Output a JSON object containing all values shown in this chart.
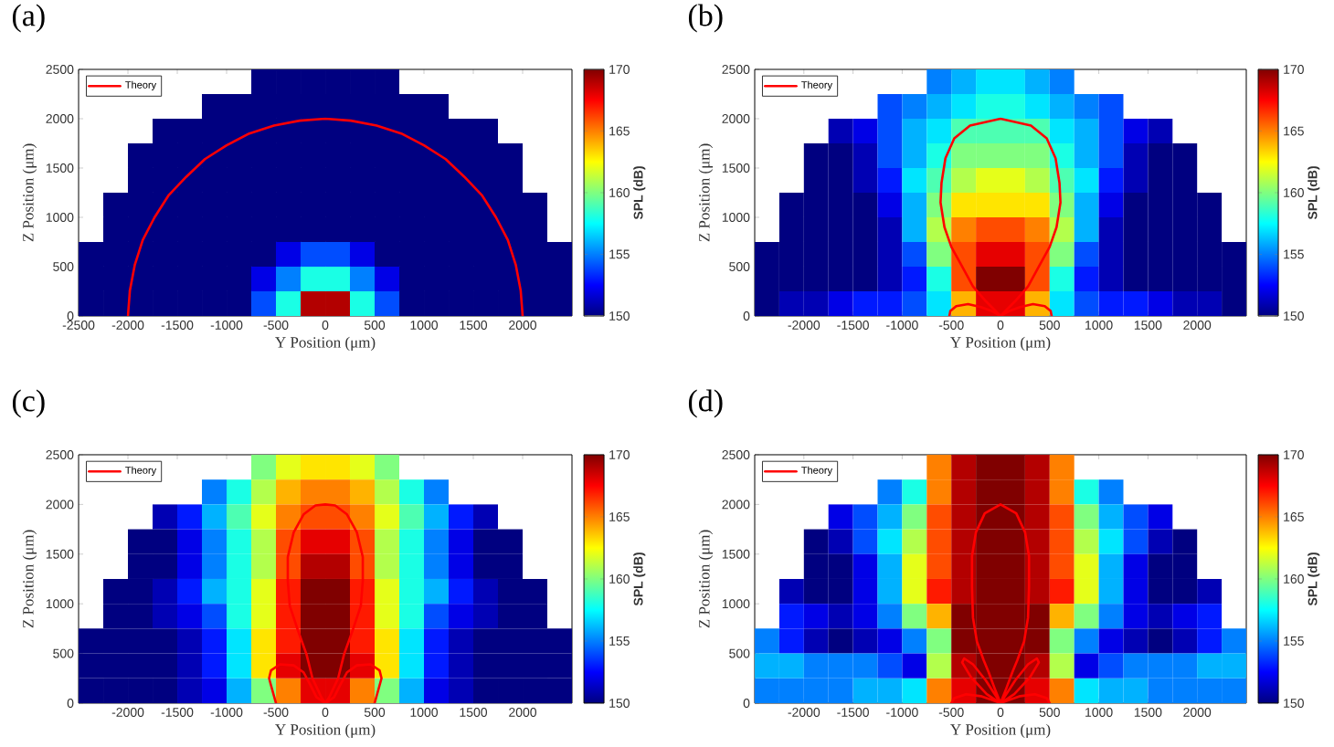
{
  "chart_data": [
    {
      "type": "heatmap",
      "title": "(a)",
      "xlabel": "Y Position (μm)",
      "ylabel": "Z Position (μm)",
      "clabel": "SPL (dB)",
      "x": [
        -2375,
        -2125,
        -1875,
        -1625,
        -1375,
        -1125,
        -875,
        -625,
        -375,
        -125,
        125,
        375,
        625,
        875,
        1125,
        1375,
        1625,
        1875,
        2125,
        2375
      ],
      "y": [
        2375,
        2125,
        1875,
        1625,
        1375,
        1125,
        875,
        625,
        375,
        125
      ],
      "cells": [
        [
          null,
          null,
          null,
          null,
          null,
          null,
          null,
          150,
          150,
          150,
          150,
          150,
          150,
          null,
          null,
          null,
          null,
          null,
          null,
          null
        ],
        [
          null,
          null,
          null,
          null,
          null,
          150,
          150,
          150,
          150,
          150,
          150,
          150,
          150,
          150,
          150,
          null,
          null,
          null,
          null,
          null
        ],
        [
          null,
          null,
          null,
          150,
          150,
          150,
          150,
          150,
          150,
          150,
          150,
          150,
          150,
          150,
          150,
          150,
          150,
          null,
          null,
          null
        ],
        [
          null,
          null,
          150,
          150,
          150,
          150,
          150,
          150,
          150,
          150,
          150,
          150,
          150,
          150,
          150,
          150,
          150,
          150,
          null,
          null
        ],
        [
          null,
          null,
          150,
          150,
          150,
          150,
          150,
          150,
          150,
          150,
          150,
          150,
          150,
          150,
          150,
          150,
          150,
          150,
          null,
          null
        ],
        [
          null,
          150,
          150,
          150,
          150,
          150,
          150,
          150,
          150,
          150,
          150,
          150,
          150,
          150,
          150,
          150,
          150,
          150,
          150,
          null
        ],
        [
          null,
          150,
          150,
          150,
          150,
          150,
          150,
          150,
          150,
          150,
          150,
          150,
          150,
          150,
          150,
          150,
          150,
          150,
          150,
          null
        ],
        [
          150,
          150,
          150,
          150,
          150,
          150,
          150,
          150,
          152,
          154,
          154,
          152,
          150,
          150,
          150,
          150,
          150,
          150,
          150,
          150
        ],
        [
          150,
          150,
          150,
          150,
          150,
          150,
          150,
          152,
          155,
          158,
          158,
          155,
          152,
          150,
          150,
          150,
          150,
          150,
          150,
          150
        ],
        [
          150,
          150,
          150,
          150,
          150,
          150,
          150,
          154,
          158,
          169,
          169,
          158,
          154,
          150,
          150,
          150,
          150,
          150,
          150,
          150
        ]
      ],
      "clim": [
        150,
        170
      ],
      "cticks": [
        150,
        155,
        160,
        165,
        170
      ],
      "xlim": [
        -2500,
        2500
      ],
      "ylim": [
        0,
        2500
      ],
      "xticks": [
        -2500,
        -2000,
        -1500,
        -1000,
        -500,
        0,
        500,
        1000,
        1500,
        2000
      ],
      "yticks": [
        0,
        500,
        1000,
        1500,
        2000,
        2500
      ],
      "legend": "top left",
      "series": [
        {
          "name": "Theory",
          "type": "line",
          "color": "#ff0000",
          "x": [
            -2000,
            -1980,
            -1930,
            -1850,
            -1730,
            -1590,
            -1410,
            -1220,
            -1000,
            -770,
            -520,
            -260,
            0,
            260,
            520,
            770,
            1000,
            1220,
            1410,
            1590,
            1730,
            1850,
            1930,
            1980,
            2000
          ],
          "values": [
            0,
            260,
            520,
            770,
            1000,
            1220,
            1410,
            1590,
            1730,
            1850,
            1930,
            1980,
            2000,
            1980,
            1930,
            1850,
            1730,
            1590,
            1410,
            1220,
            1000,
            770,
            520,
            260,
            0
          ]
        }
      ]
    },
    {
      "type": "heatmap",
      "title": "(b)",
      "xlabel": "Y Position (μm)",
      "ylabel": "Z Position (μm)",
      "clabel": "SPL (dB)",
      "x": [
        -2375,
        -2125,
        -1875,
        -1625,
        -1375,
        -1125,
        -875,
        -625,
        -375,
        -125,
        125,
        375,
        625,
        875,
        1125,
        1375,
        1625,
        1875,
        2125,
        2375
      ],
      "y": [
        2375,
        2125,
        1875,
        1625,
        1375,
        1125,
        875,
        625,
        375,
        125
      ],
      "cells": [
        [
          null,
          null,
          null,
          null,
          null,
          null,
          null,
          155,
          156,
          157,
          157,
          156,
          155,
          null,
          null,
          null,
          null,
          null,
          null,
          null
        ],
        [
          null,
          null,
          null,
          null,
          null,
          154,
          155,
          156,
          157,
          158,
          158,
          157,
          156,
          155,
          154,
          null,
          null,
          null,
          null,
          null
        ],
        [
          null,
          null,
          null,
          151,
          152,
          154,
          156,
          157,
          159,
          159,
          159,
          159,
          157,
          156,
          154,
          152,
          151,
          null,
          null,
          null
        ],
        [
          null,
          null,
          150,
          150,
          151,
          154,
          156,
          158,
          160,
          160,
          160,
          160,
          158,
          156,
          154,
          151,
          150,
          150,
          null,
          null
        ],
        [
          null,
          null,
          150,
          150,
          151,
          153,
          157,
          159,
          161,
          162,
          162,
          161,
          159,
          157,
          153,
          151,
          150,
          150,
          null,
          null
        ],
        [
          null,
          150,
          150,
          150,
          150,
          152,
          156,
          160,
          163,
          163,
          163,
          163,
          160,
          156,
          152,
          150,
          150,
          150,
          150,
          null
        ],
        [
          null,
          150,
          150,
          150,
          150,
          151,
          156,
          161,
          165,
          166,
          166,
          165,
          161,
          156,
          151,
          150,
          150,
          150,
          150,
          null
        ],
        [
          150,
          150,
          150,
          150,
          150,
          151,
          154,
          160,
          166,
          168,
          168,
          166,
          160,
          154,
          151,
          150,
          150,
          150,
          150,
          150
        ],
        [
          150,
          150,
          150,
          150,
          150,
          151,
          153,
          158,
          166,
          170,
          170,
          166,
          158,
          153,
          151,
          150,
          150,
          150,
          150,
          150
        ],
        [
          150,
          151,
          151,
          152,
          153,
          153,
          154,
          157,
          164,
          168,
          168,
          164,
          157,
          154,
          153,
          153,
          152,
          151,
          151,
          150
        ]
      ],
      "clim": [
        150,
        170
      ],
      "cticks": [
        150,
        155,
        160,
        165,
        170
      ],
      "xlim": [
        -2500,
        2500
      ],
      "ylim": [
        0,
        2500
      ],
      "xticks": [
        -2000,
        -1500,
        -1000,
        -500,
        0,
        500,
        1000,
        1500,
        2000
      ],
      "yticks": [
        0,
        500,
        1000,
        1500,
        2000,
        2500
      ],
      "legend": "top left",
      "series": [
        {
          "name": "Theory",
          "type": "line",
          "color": "#ff0000",
          "x": [
            -520,
            -510,
            -450,
            -330,
            -200,
            -90,
            0,
            -150,
            -280,
            -390,
            -500,
            -570,
            -610,
            -600,
            -560,
            -470,
            -310,
            0,
            310,
            470,
            560,
            600,
            610,
            570,
            500,
            390,
            280,
            150,
            0,
            90,
            200,
            330,
            450,
            510,
            520
          ],
          "values": [
            0,
            50,
            100,
            120,
            90,
            50,
            0,
            150,
            300,
            500,
            700,
            900,
            1150,
            1350,
            1600,
            1800,
            1930,
            2000,
            1930,
            1800,
            1600,
            1350,
            1150,
            900,
            700,
            500,
            300,
            150,
            0,
            50,
            90,
            120,
            100,
            50,
            0
          ]
        }
      ]
    },
    {
      "type": "heatmap",
      "title": "(c)",
      "xlabel": "Y Position (μm)",
      "ylabel": "Z Position (μm)",
      "clabel": "SPL (dB)",
      "x": [
        -2375,
        -2125,
        -1875,
        -1625,
        -1375,
        -1125,
        -875,
        -625,
        -375,
        -125,
        125,
        375,
        625,
        875,
        1125,
        1375,
        1625,
        1875,
        2125,
        2375
      ],
      "y": [
        2375,
        2125,
        1875,
        1625,
        1375,
        1125,
        875,
        625,
        375,
        125
      ],
      "cells": [
        [
          null,
          null,
          null,
          null,
          null,
          null,
          null,
          160,
          162,
          163,
          163,
          162,
          160,
          null,
          null,
          null,
          null,
          null,
          null,
          null
        ],
        [
          null,
          null,
          null,
          null,
          null,
          155,
          158,
          161,
          164,
          165,
          165,
          164,
          161,
          158,
          155,
          null,
          null,
          null,
          null,
          null
        ],
        [
          null,
          null,
          null,
          151,
          153,
          156,
          159,
          162,
          165,
          166,
          166,
          165,
          162,
          159,
          156,
          153,
          151,
          null,
          null,
          null
        ],
        [
          null,
          null,
          150,
          150,
          152,
          155,
          158,
          161,
          166,
          168,
          168,
          166,
          161,
          158,
          155,
          152,
          150,
          150,
          null,
          null
        ],
        [
          null,
          null,
          150,
          150,
          152,
          155,
          158,
          161,
          166,
          169,
          169,
          166,
          161,
          158,
          155,
          152,
          150,
          150,
          null,
          null
        ],
        [
          null,
          150,
          150,
          151,
          153,
          156,
          158,
          162,
          167,
          170,
          170,
          167,
          162,
          158,
          156,
          153,
          151,
          150,
          150,
          null
        ],
        [
          null,
          150,
          150,
          151,
          152,
          154,
          158,
          162,
          167,
          170,
          170,
          167,
          162,
          158,
          154,
          152,
          151,
          150,
          150,
          null
        ],
        [
          150,
          150,
          150,
          150,
          151,
          153,
          157,
          163,
          167,
          170,
          170,
          167,
          163,
          157,
          153,
          151,
          150,
          150,
          150,
          150
        ],
        [
          150,
          150,
          150,
          150,
          151,
          153,
          157,
          163,
          168,
          170,
          170,
          168,
          163,
          157,
          153,
          151,
          150,
          150,
          150,
          150
        ],
        [
          150,
          150,
          150,
          150,
          151,
          152,
          156,
          160,
          165,
          168,
          168,
          165,
          160,
          156,
          152,
          151,
          150,
          150,
          150,
          150
        ]
      ],
      "clim": [
        150,
        170
      ],
      "cticks": [
        150,
        155,
        160,
        165,
        170
      ],
      "xlim": [
        -2500,
        2500
      ],
      "ylim": [
        0,
        2500
      ],
      "xticks": [
        -2000,
        -1500,
        -1000,
        -500,
        0,
        500,
        1000,
        1500,
        2000
      ],
      "yticks": [
        0,
        500,
        1000,
        1500,
        2000,
        2500
      ],
      "legend": "top left",
      "series": [
        {
          "name": "Theory",
          "type": "line",
          "color": "#ff0000",
          "x": [
            -500,
            -570,
            -550,
            -460,
            -320,
            -220,
            -150,
            -90,
            0,
            -40,
            -130,
            -190,
            -280,
            -360,
            -380,
            -380,
            -320,
            -220,
            -100,
            0,
            100,
            220,
            320,
            380,
            380,
            360,
            280,
            190,
            130,
            40,
            0,
            90,
            150,
            220,
            320,
            460,
            550,
            570,
            500
          ],
          "values": [
            0,
            250,
            330,
            390,
            380,
            310,
            180,
            60,
            0,
            60,
            250,
            490,
            740,
            980,
            1230,
            1470,
            1720,
            1900,
            1990,
            2000,
            1990,
            1900,
            1720,
            1470,
            1230,
            980,
            740,
            490,
            250,
            60,
            0,
            60,
            180,
            310,
            380,
            390,
            330,
            250,
            0
          ]
        }
      ]
    },
    {
      "type": "heatmap",
      "title": "(d)",
      "xlabel": "Y Position (μm)",
      "ylabel": "Z Position (μm)",
      "clabel": "SPL (dB)",
      "x": [
        -2375,
        -2125,
        -1875,
        -1625,
        -1375,
        -1125,
        -875,
        -625,
        -375,
        -125,
        125,
        375,
        625,
        875,
        1125,
        1375,
        1625,
        1875,
        2125,
        2375
      ],
      "y": [
        2375,
        2125,
        1875,
        1625,
        1375,
        1125,
        875,
        625,
        375,
        125
      ],
      "cells": [
        [
          null,
          null,
          null,
          null,
          null,
          null,
          null,
          165,
          169,
          170,
          170,
          169,
          165,
          null,
          null,
          null,
          null,
          null,
          null,
          null
        ],
        [
          null,
          null,
          null,
          null,
          null,
          155,
          158,
          165,
          169,
          170,
          170,
          169,
          165,
          158,
          155,
          null,
          null,
          null,
          null,
          null
        ],
        [
          null,
          null,
          null,
          152,
          154,
          156,
          160,
          166,
          169,
          170,
          170,
          169,
          166,
          160,
          156,
          154,
          152,
          null,
          null,
          null
        ],
        [
          null,
          null,
          150,
          151,
          154,
          157,
          161,
          166,
          169,
          170,
          170,
          169,
          166,
          161,
          157,
          154,
          151,
          150,
          null,
          null
        ],
        [
          null,
          null,
          150,
          150,
          152,
          156,
          162,
          166,
          169,
          170,
          170,
          169,
          166,
          162,
          156,
          152,
          150,
          150,
          null,
          null
        ],
        [
          null,
          151,
          150,
          150,
          152,
          156,
          162,
          167,
          169,
          170,
          170,
          169,
          167,
          162,
          156,
          152,
          150,
          150,
          151,
          null
        ],
        [
          null,
          153,
          152,
          151,
          152,
          155,
          160,
          164,
          170,
          170,
          170,
          170,
          164,
          160,
          155,
          152,
          151,
          152,
          153,
          null
        ],
        [
          155,
          153,
          151,
          150,
          151,
          152,
          155,
          160,
          170,
          170,
          170,
          170,
          160,
          155,
          152,
          151,
          150,
          151,
          153,
          155
        ],
        [
          156,
          156,
          155,
          155,
          155,
          154,
          152,
          161,
          169,
          170,
          170,
          169,
          161,
          152,
          154,
          155,
          155,
          155,
          156,
          156
        ],
        [
          155,
          155,
          155,
          155,
          156,
          156,
          157,
          165,
          168,
          170,
          170,
          168,
          165,
          157,
          156,
          156,
          155,
          155,
          155,
          155
        ]
      ],
      "clim": [
        150,
        170
      ],
      "cticks": [
        150,
        155,
        160,
        165,
        170
      ],
      "xlim": [
        -2500,
        2500
      ],
      "ylim": [
        0,
        2500
      ],
      "xticks": [
        -2000,
        -1500,
        -1000,
        -500,
        0,
        500,
        1000,
        1500,
        2000
      ],
      "yticks": [
        0,
        500,
        1000,
        1500,
        2000,
        2500
      ],
      "legend": "top left",
      "series": [
        {
          "name": "Theory",
          "type": "line",
          "color": "#ff0000",
          "x": [
            -500,
            -470,
            -350,
            -200,
            -80,
            0,
            -140,
            -300,
            -390,
            -370,
            -280,
            -150,
            0,
            -60,
            -120,
            -170,
            -240,
            -280,
            -290,
            -290,
            -250,
            -160,
            0,
            160,
            250,
            290,
            290,
            280,
            240,
            170,
            120,
            60,
            0,
            150,
            280,
            370,
            390,
            300,
            140,
            0,
            80,
            200,
            350,
            470,
            500
          ],
          "values": [
            0,
            50,
            90,
            70,
            30,
            0,
            90,
            260,
            410,
            450,
            390,
            230,
            0,
            150,
            310,
            430,
            620,
            860,
            1170,
            1480,
            1720,
            1910,
            2000,
            1910,
            1720,
            1480,
            1170,
            860,
            620,
            430,
            310,
            150,
            0,
            230,
            390,
            450,
            410,
            260,
            90,
            0,
            30,
            70,
            90,
            50,
            0
          ]
        }
      ]
    }
  ]
}
